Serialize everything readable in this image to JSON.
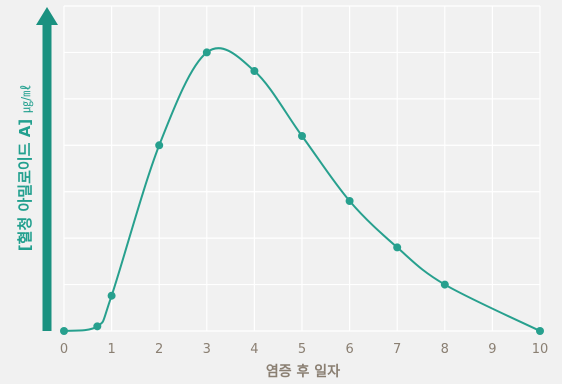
{
  "chart_data": {
    "type": "line",
    "title": "",
    "xlabel": "염증 후 일자",
    "ylabel": "[혈청 아밀로이드 A]",
    "yunit": "㎍/㎖",
    "x": [
      0,
      0.7,
      1,
      2,
      3,
      4,
      5,
      6,
      7,
      8,
      10
    ],
    "y": [
      0,
      0.5,
      3.8,
      20,
      30,
      28,
      21,
      14,
      9,
      5,
      0
    ],
    "xlim": [
      0,
      10
    ],
    "ylim": [
      0,
      35
    ],
    "xticks": [
      "0",
      "1",
      "2",
      "3",
      "4",
      "5",
      "6",
      "7",
      "8",
      "9",
      "10"
    ],
    "grid": true,
    "yticks_labeled": false,
    "curve": "smooth",
    "colors": {
      "line": "#27a08e",
      "axis_arrow": "#1a9180",
      "grid": "#ffffff",
      "text": "#8a7f72"
    }
  }
}
